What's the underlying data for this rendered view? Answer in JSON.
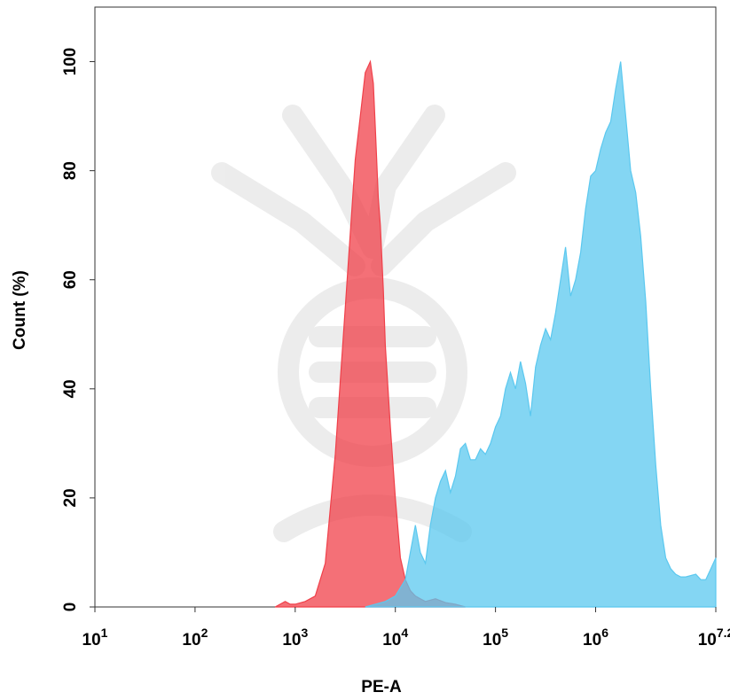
{
  "chart_data": {
    "type": "area",
    "title": "",
    "xlabel": "PE-A",
    "ylabel": "Count  (%)",
    "x_scale": "log10",
    "xlim": [
      1,
      7.2
    ],
    "ylim": [
      0,
      110
    ],
    "x_ticks": [
      {
        "base": "10",
        "exp": "1",
        "value": 1
      },
      {
        "base": "10",
        "exp": "2",
        "value": 2
      },
      {
        "base": "10",
        "exp": "3",
        "value": 3
      },
      {
        "base": "10",
        "exp": "4",
        "value": 4
      },
      {
        "base": "10",
        "exp": "5",
        "value": 5
      },
      {
        "base": "10",
        "exp": "6",
        "value": 6
      },
      {
        "base": "10",
        "exp": "7.2",
        "value": 7.2
      }
    ],
    "y_ticks": [
      "0",
      "20",
      "40",
      "60",
      "80",
      "100"
    ],
    "grid": false,
    "series": [
      {
        "color": "#f0404a",
        "fill_opacity": 0.75,
        "x_log10": [
          2.8,
          2.9,
          2.95,
          3.0,
          3.1,
          3.2,
          3.3,
          3.4,
          3.5,
          3.6,
          3.65,
          3.7,
          3.75,
          3.78,
          3.8,
          3.83,
          3.85,
          3.88,
          3.9,
          3.95,
          4.0,
          4.05,
          4.1,
          4.15,
          4.2,
          4.25,
          4.3,
          4.4,
          4.5,
          4.6,
          4.7
        ],
        "y": [
          0,
          1,
          0.5,
          0.5,
          1,
          2,
          8,
          28,
          55,
          82,
          90,
          98,
          100,
          96,
          88,
          75,
          70,
          58,
          48,
          33,
          20,
          9,
          5,
          3,
          2,
          1.5,
          1,
          1.5,
          0.8,
          0.5,
          0
        ]
      },
      {
        "color": "#5bc8ef",
        "fill_opacity": 0.75,
        "x_log10": [
          3.7,
          3.8,
          3.9,
          4.0,
          4.1,
          4.15,
          4.2,
          4.25,
          4.3,
          4.35,
          4.4,
          4.45,
          4.5,
          4.55,
          4.6,
          4.65,
          4.7,
          4.75,
          4.8,
          4.85,
          4.9,
          4.95,
          5.0,
          5.05,
          5.1,
          5.15,
          5.2,
          5.25,
          5.3,
          5.35,
          5.4,
          5.45,
          5.5,
          5.55,
          5.6,
          5.65,
          5.7,
          5.75,
          5.8,
          5.85,
          5.9,
          5.95,
          6.0,
          6.05,
          6.1,
          6.15,
          6.2,
          6.25,
          6.3,
          6.35,
          6.4,
          6.45,
          6.5,
          6.55,
          6.6,
          6.65,
          6.7,
          6.75,
          6.8,
          6.85,
          6.9,
          7.0,
          7.05,
          7.1,
          7.15,
          7.2
        ],
        "y": [
          0,
          0.5,
          1,
          2,
          5,
          10,
          15,
          10,
          8,
          15,
          20,
          23,
          25,
          21,
          24,
          29,
          30,
          27,
          27,
          29,
          28,
          30,
          33,
          35,
          40,
          43,
          40,
          45,
          41,
          35,
          44,
          48,
          51,
          49,
          54,
          60,
          66,
          57,
          60,
          65,
          73,
          79,
          80,
          84,
          87,
          89,
          95,
          100,
          90,
          80,
          76,
          68,
          56,
          40,
          26,
          15,
          9,
          7,
          6,
          5.5,
          5.5,
          6,
          5,
          5,
          7,
          9
        ]
      }
    ]
  }
}
